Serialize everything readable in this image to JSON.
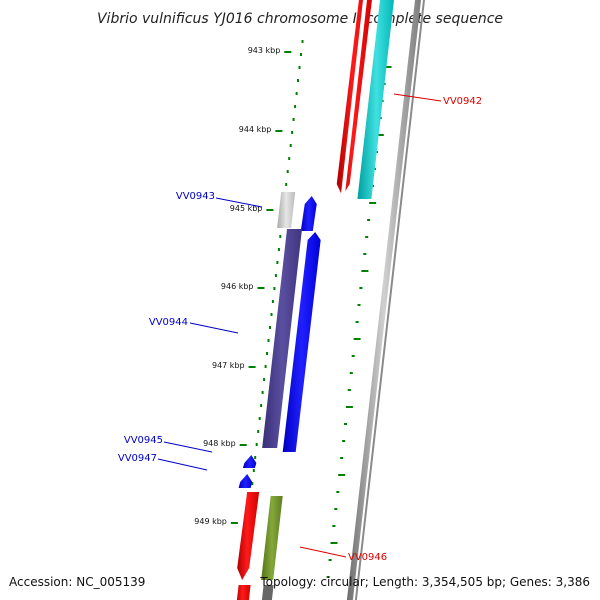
{
  "title": "Vibrio vulnificus YJ016 chromosome I, complete sequence",
  "footer": {
    "accession": "Accession: NC_005139",
    "summary": "Topology: circular; Length: 3,354,505 bp; Genes: 3,386"
  },
  "ticks": [
    {
      "label": "943 kbp"
    },
    {
      "label": "944 kbp"
    },
    {
      "label": "945 kbp"
    },
    {
      "label": "946 kbp"
    },
    {
      "label": "947 kbp"
    },
    {
      "label": "948 kbp"
    },
    {
      "label": "949 kbp"
    }
  ],
  "genes": [
    {
      "name": "VV0942",
      "strand": "forward",
      "label_color": "#dd0000"
    },
    {
      "name": "VV0943",
      "strand": "reverse",
      "label_color": "#0000cc"
    },
    {
      "name": "VV0944",
      "strand": "reverse",
      "label_color": "#0000cc"
    },
    {
      "name": "VV0945",
      "strand": "reverse",
      "label_color": "#0000cc"
    },
    {
      "name": "VV0947",
      "strand": "reverse",
      "label_color": "#0000cc"
    },
    {
      "name": "VV0946",
      "strand": "forward",
      "label_color": "#dd0000"
    }
  ],
  "colors": {
    "backbone": "#8a8a8a",
    "tick": "#008000",
    "cds_forward": "#ff0000",
    "cds_reverse": "#0000ff",
    "feature_cyan": "#00c8c8",
    "feature_purple": "#4b3f8c",
    "feature_olive": "#6b8e23",
    "feature_gray": "#c8c8c8"
  }
}
